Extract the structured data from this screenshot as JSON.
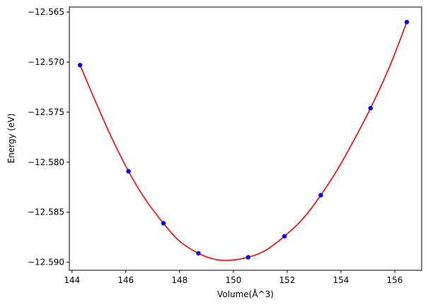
{
  "chart_data": {
    "type": "scatter",
    "title": "",
    "xlabel": "Volume(Å^3)",
    "ylabel": "Energy (eV)",
    "xlim": [
      143.9,
      157.0
    ],
    "ylim": [
      -12.5908,
      -12.5645
    ],
    "grid": false,
    "x_ticks": [
      144,
      146,
      148,
      150,
      152,
      154,
      156
    ],
    "y_ticks": [
      -12.565,
      -12.57,
      -12.575,
      -12.58,
      -12.585,
      -12.59
    ],
    "x_tick_labels": [
      "144",
      "146",
      "148",
      "150",
      "152",
      "154",
      "156"
    ],
    "y_tick_labels": [
      "−12.565",
      "−12.570",
      "−12.575",
      "−12.580",
      "−12.585",
      "−12.590"
    ],
    "series": [
      {
        "kind": "scatter",
        "color": "#0000ff",
        "x": [
          144.3,
          146.1,
          147.4,
          148.7,
          150.55,
          151.9,
          153.25,
          155.1,
          156.45
        ],
        "y": [
          -12.5703,
          -12.5809,
          -12.5861,
          -12.5891,
          -12.5895,
          -12.5874,
          -12.5833,
          -12.5746,
          -12.566
        ]
      },
      {
        "kind": "fit-curve",
        "color": "#ff0000",
        "x": [
          144.3,
          144.9,
          145.5,
          146.1,
          146.7,
          147.4,
          148.0,
          148.7,
          149.3,
          149.85,
          150.55,
          151.2,
          151.9,
          152.6,
          153.25,
          153.9,
          154.5,
          155.1,
          155.8,
          156.45
        ],
        "y": [
          -12.5703,
          -12.5741,
          -12.5777,
          -12.5809,
          -12.5836,
          -12.5861,
          -12.5879,
          -12.5891,
          -12.5897,
          -12.5898,
          -12.5895,
          -12.5888,
          -12.5874,
          -12.5856,
          -12.5833,
          -12.5806,
          -12.5777,
          -12.5746,
          -12.5705,
          -12.566
        ]
      }
    ]
  }
}
